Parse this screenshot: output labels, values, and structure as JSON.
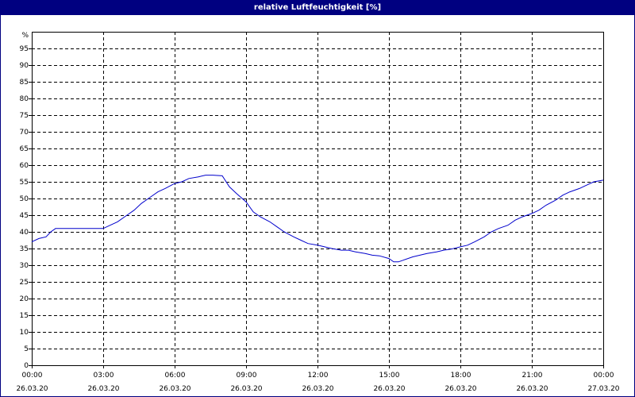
{
  "window": {
    "title": "relative Luftfeuchtigkeit [%]"
  },
  "colors": {
    "titlebar": "#000080",
    "line": "#0000cc",
    "grid": "#000000"
  },
  "chart_data": {
    "type": "line",
    "title": "relative Luftfeuchtigkeit [%]",
    "ylabel": "%",
    "xlabel": "",
    "ylim": [
      0,
      100
    ],
    "xlim_hours": [
      0,
      24
    ],
    "grid": true,
    "y_ticks": [
      0,
      5,
      10,
      15,
      20,
      25,
      30,
      35,
      40,
      45,
      50,
      55,
      60,
      65,
      70,
      75,
      80,
      85,
      90,
      95
    ],
    "x_ticks": [
      {
        "time": "00:00",
        "date": "26.03.20"
      },
      {
        "time": "03:00",
        "date": "26.03.20"
      },
      {
        "time": "06:00",
        "date": "26.03.20"
      },
      {
        "time": "09:00",
        "date": "26.03.20"
      },
      {
        "time": "12:00",
        "date": "26.03.20"
      },
      {
        "time": "15:00",
        "date": "26.03.20"
      },
      {
        "time": "18:00",
        "date": "26.03.20"
      },
      {
        "time": "21:00",
        "date": "26.03.20"
      },
      {
        "time": "00:00",
        "date": "27.03.20"
      }
    ],
    "series": [
      {
        "values_hours": [
          0,
          0.3,
          0.6,
          0.8,
          1.0,
          1.5,
          2.0,
          2.5,
          3.0,
          3.3,
          3.6,
          4.0,
          4.3,
          4.6,
          5.0,
          5.3,
          5.6,
          6.0,
          6.3,
          6.6,
          7.0,
          7.3,
          7.6,
          8.0,
          8.3,
          8.6,
          9.0,
          9.3,
          9.6,
          10.0,
          10.3,
          10.6,
          11.0,
          11.3,
          11.6,
          12.0,
          12.3,
          12.6,
          13.0,
          13.3,
          13.6,
          14.0,
          14.3,
          14.6,
          15.0,
          15.2,
          15.4,
          15.6,
          16.0,
          16.3,
          16.6,
          17.0,
          17.3,
          17.6,
          18.0,
          18.3,
          18.6,
          19.0,
          19.3,
          19.6,
          20.0,
          20.3,
          20.6,
          21.0,
          21.3,
          21.6,
          22.0,
          22.3,
          22.6,
          23.0,
          23.3,
          23.6,
          24.0
        ],
        "values": [
          37,
          38,
          38.5,
          40,
          41,
          41,
          41,
          41,
          41,
          42,
          43,
          45,
          46.5,
          48.5,
          50.5,
          52,
          53,
          54.5,
          55,
          56,
          56.5,
          57,
          57,
          56.8,
          53.5,
          51.5,
          49,
          46,
          44.5,
          43,
          41.5,
          40,
          38.5,
          37.5,
          36.5,
          36,
          35.5,
          35,
          34.5,
          34.5,
          34,
          33.5,
          33,
          32.8,
          32,
          31,
          31,
          31.5,
          32.5,
          33,
          33.5,
          34,
          34.5,
          34.8,
          35.5,
          36,
          37,
          38.5,
          40,
          41,
          42,
          43.5,
          44.5,
          45.5,
          46.5,
          48,
          49.5,
          51,
          52,
          53,
          54,
          55,
          55.5
        ]
      }
    ]
  }
}
